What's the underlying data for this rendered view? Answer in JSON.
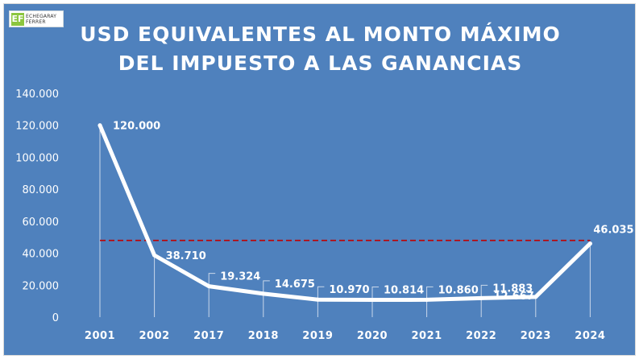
{
  "logo": {
    "mark": "EF",
    "line1": "ECHEGARAY",
    "line2": "FERRER"
  },
  "chart_data": {
    "type": "line",
    "title_line1": "USD EQUIVALENTES AL MONTO MÁXIMO",
    "title_line2": "DEL IMPUESTO A LAS GANANCIAS",
    "categories": [
      "2001",
      "2002",
      "2017",
      "2018",
      "2019",
      "2020",
      "2021",
      "2022",
      "2023",
      "2024"
    ],
    "values": [
      120000,
      38710,
      19324,
      14675,
      10970,
      10814,
      10860,
      11883,
      12667,
      46035
    ],
    "data_labels": [
      "120.000",
      "38.710",
      "19.324",
      "14.675",
      "10.970",
      "10.814",
      "10.860",
      "11.883",
      "12.667",
      "46.035"
    ],
    "y_ticks": [
      0,
      20000,
      40000,
      60000,
      80000,
      100000,
      120000,
      140000
    ],
    "y_tick_labels": [
      "0",
      "20.000",
      "40.000",
      "60.000",
      "80.000",
      "100.000",
      "120.000",
      "140.000"
    ],
    "ylim": [
      0,
      140000
    ],
    "reference_line": {
      "value": 48000,
      "style": "dashed",
      "color": "#c00000"
    },
    "line_color": "#ffffff",
    "background_color": "#4f81bd",
    "grid": false
  }
}
